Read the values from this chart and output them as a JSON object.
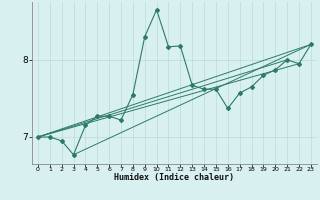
{
  "xlabel": "Humidex (Indice chaleur)",
  "ylabel": "",
  "bg_color": "#d8f0f0",
  "line_color": "#2d7a6a",
  "marker_color": "#2d7a6a",
  "xlim": [
    -0.5,
    23.5
  ],
  "ylim": [
    6.65,
    8.75
  ],
  "yticks": [
    7,
    8
  ],
  "xticks": [
    0,
    1,
    2,
    3,
    4,
    5,
    6,
    7,
    8,
    9,
    10,
    11,
    12,
    13,
    14,
    15,
    16,
    17,
    18,
    19,
    20,
    21,
    22,
    23
  ],
  "series": [
    [
      0,
      7.0
    ],
    [
      1,
      7.0
    ],
    [
      2,
      6.95
    ],
    [
      3,
      6.77
    ],
    [
      4,
      7.15
    ],
    [
      5,
      7.27
    ],
    [
      6,
      7.27
    ],
    [
      7,
      7.22
    ],
    [
      8,
      7.55
    ],
    [
      9,
      8.3
    ],
    [
      10,
      8.65
    ],
    [
      11,
      8.17
    ],
    [
      12,
      8.18
    ],
    [
      13,
      7.67
    ],
    [
      14,
      7.62
    ],
    [
      15,
      7.62
    ],
    [
      16,
      7.37
    ],
    [
      17,
      7.57
    ],
    [
      18,
      7.65
    ],
    [
      19,
      7.8
    ],
    [
      20,
      7.87
    ],
    [
      21,
      8.0
    ],
    [
      22,
      7.95
    ],
    [
      23,
      8.2
    ]
  ],
  "linear_lines": [
    [
      [
        0,
        7.0
      ],
      [
        23,
        8.2
      ]
    ],
    [
      [
        0,
        7.0
      ],
      [
        22,
        7.95
      ]
    ],
    [
      [
        0,
        7.0
      ],
      [
        21,
        8.0
      ]
    ],
    [
      [
        3,
        6.77
      ],
      [
        23,
        8.2
      ]
    ]
  ]
}
